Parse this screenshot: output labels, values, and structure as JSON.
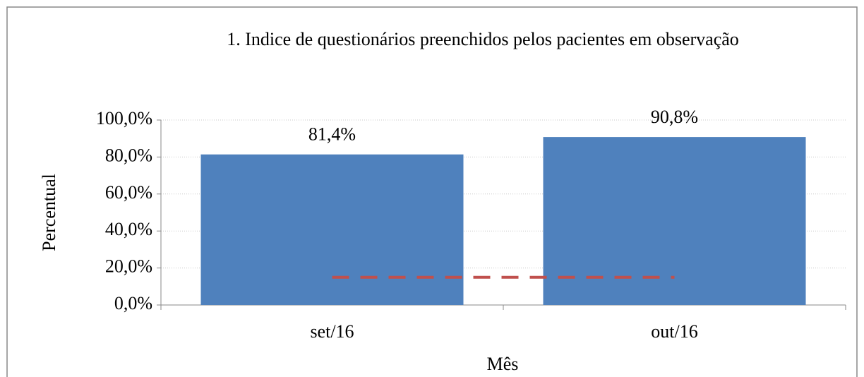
{
  "chart_data": {
    "type": "bar",
    "title": "1. Indice de questionários preenchidos pelos pacientes em observação",
    "x_label": "Mês",
    "y_label": "Percentual",
    "categories": [
      "set/16",
      "out/16"
    ],
    "series": [
      {
        "type": "bar",
        "color": "#4f81bd",
        "values": [
          81.4,
          90.8
        ],
        "value_labels": [
          "81,4%",
          "90,8%"
        ]
      },
      {
        "type": "line",
        "color": "#c0504d",
        "dashed": true,
        "values": [
          15,
          15
        ]
      }
    ],
    "ylim": [
      0,
      100
    ],
    "yticks": [
      {
        "value": 0,
        "label": "0,0%"
      },
      {
        "value": 20,
        "label": "20,0%"
      },
      {
        "value": 40,
        "label": "40,0%"
      },
      {
        "value": 60,
        "label": "60,0%"
      },
      {
        "value": 80,
        "label": "80,0%"
      },
      {
        "value": 100,
        "label": "100,0%"
      }
    ],
    "grid": true
  }
}
